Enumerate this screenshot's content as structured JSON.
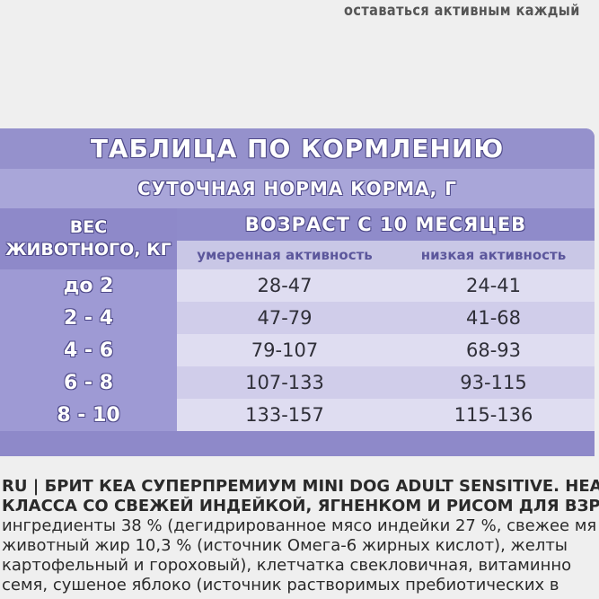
{
  "top_text": "оставаться активным каждый",
  "table": {
    "title": "ТАБЛИЦА ПО КОРМЛЕНИЮ",
    "subtitle": "СУТОЧНАЯ НОРМА КОРМА, Г",
    "weight_header": [
      "ВЕС",
      "ЖИВОТНОГО, КГ"
    ],
    "age_header": "ВОЗРАСТ С 10 МЕСЯЦЕВ",
    "columns": [
      "умеренная активность",
      "низкая активность"
    ],
    "rows": [
      [
        "до 2",
        "28-47",
        "24-41"
      ],
      [
        "2 - 4",
        "47-79",
        "41-68"
      ],
      [
        "4 - 6",
        "79-107",
        "68-93"
      ],
      [
        "6 - 8",
        "107-133",
        "93-115"
      ],
      [
        "8 - 10",
        "133-157",
        "115-136"
      ]
    ]
  },
  "description": {
    "lines": [
      "RU | БРИТ КЕА СУПЕРПРЕМИУМ MINI DOG ADULT SENSITIVE. HEALTHY",
      "КЛАССА СО СВЕЖЕЙ ИНДЕЙКОЙ, ЯГНЕНКОМ И РИСОМ ДЛЯ ВЗРОСЛ",
      "ингредиенты 38 % (дегидрированное мясо индейки 27 %, свежее мя",
      "животный жир 10,3 % (источник Омега-6 жирных кислот), желты",
      "картофельный и гороховый), клетчатка свекловичная, витаминно",
      "семя, сушеное яблоко (источник растворимых пребиотических в"
    ]
  }
}
